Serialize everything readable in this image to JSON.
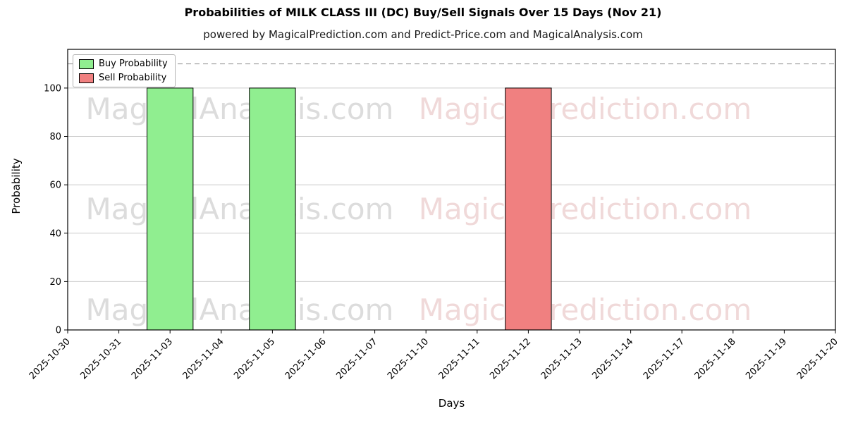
{
  "chart_data": {
    "type": "bar",
    "title": "Probabilities of MILK CLASS III (DC) Buy/Sell Signals Over 15 Days (Nov 21)",
    "subtitle": "powered by MagicalPrediction.com and Predict-Price.com and MagicalAnalysis.com",
    "xlabel": "Days",
    "ylabel": "Probability",
    "categories": [
      "2025-10-30",
      "2025-10-31",
      "2025-11-03",
      "2025-11-04",
      "2025-11-05",
      "2025-11-06",
      "2025-11-07",
      "2025-11-10",
      "2025-11-11",
      "2025-11-12",
      "2025-11-13",
      "2025-11-14",
      "2025-11-17",
      "2025-11-18",
      "2025-11-19",
      "2025-11-20"
    ],
    "series": [
      {
        "name": "Buy Probability",
        "color": "#90ee90",
        "values": [
          0,
          0,
          100,
          0,
          100,
          0,
          0,
          0,
          0,
          0,
          0,
          0,
          0,
          0,
          0,
          0
        ]
      },
      {
        "name": "Sell Probability",
        "color": "#f08080",
        "values": [
          0,
          0,
          0,
          0,
          0,
          0,
          0,
          0,
          0,
          100,
          0,
          0,
          0,
          0,
          0,
          0
        ]
      }
    ],
    "ylim": [
      0,
      116
    ],
    "yticks": [
      0,
      20,
      40,
      60,
      80,
      100
    ],
    "dashed_line_y": 110,
    "grid": true,
    "legend_position": "upper-left",
    "bar_edge_color": "#000000",
    "grid_color": "#cccccc",
    "dashed_line_color": "#999999",
    "watermarks": {
      "left_text": "MagicalAnalysis.com",
      "right_text": "MagicalPrediction.com",
      "left_color": "rgba(140,140,140,0.30)",
      "right_color": "rgba(205,130,130,0.30)"
    }
  }
}
